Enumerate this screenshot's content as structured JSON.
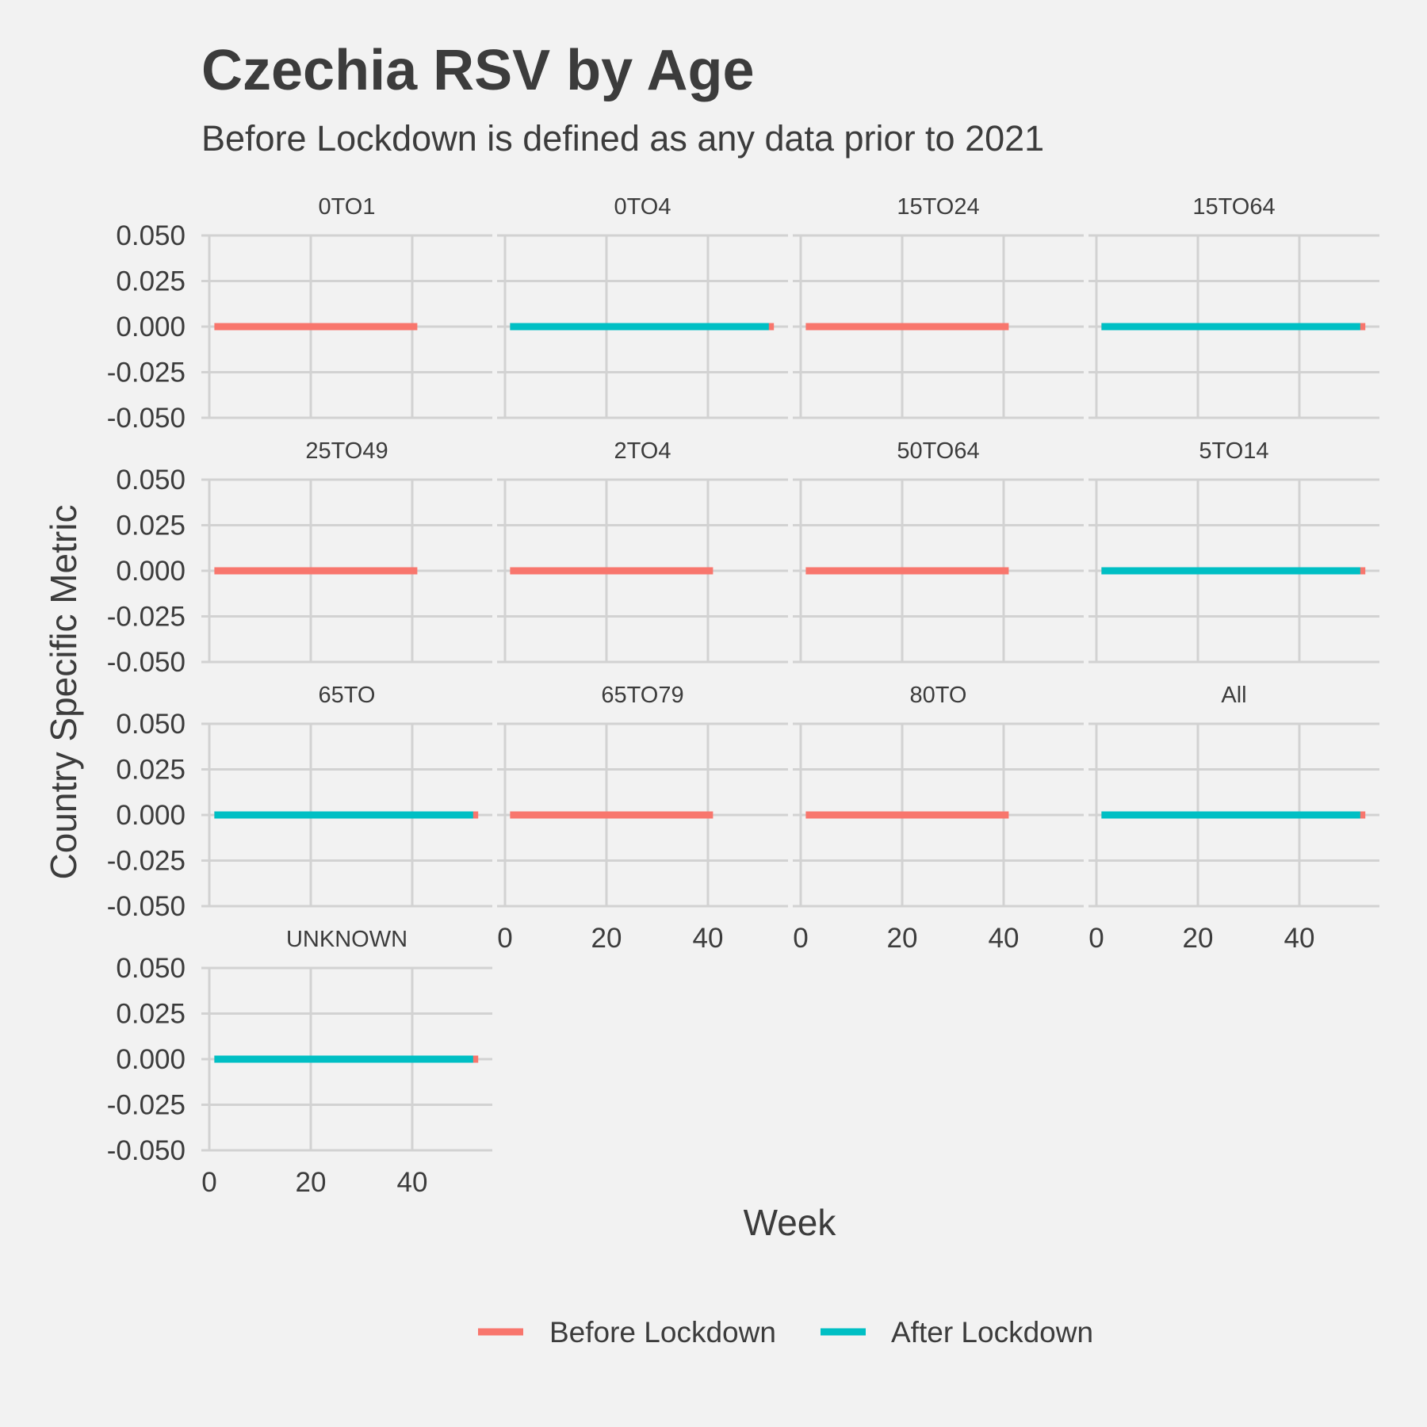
{
  "chart_data": {
    "type": "line",
    "title": "Czechia RSV by Age",
    "subtitle": "Before Lockdown is defined as any data prior to 2021",
    "xlabel": "Week",
    "ylabel": "Country Specific Metric",
    "xlim": [
      0,
      55
    ],
    "ylim": [
      -0.05,
      0.05
    ],
    "x_ticks": [
      0,
      20,
      40
    ],
    "y_ticks": [
      0.05,
      0.025,
      0,
      -0.025,
      -0.05
    ],
    "y_tick_labels": [
      "0.050",
      "0.025",
      "0.000",
      "-0.025",
      "-0.050"
    ],
    "legend_position": "bottom",
    "legend": [
      {
        "name": "Before Lockdown",
        "color": "#f8766d"
      },
      {
        "name": "After Lockdown",
        "color": "#00bfc4"
      }
    ],
    "panels": [
      {
        "label": "0TO1",
        "before": [
          1,
          41
        ],
        "after": null
      },
      {
        "label": "0TO4",
        "before": [
          1,
          53
        ],
        "after": [
          1,
          52
        ]
      },
      {
        "label": "15TO24",
        "before": [
          1,
          41
        ],
        "after": null
      },
      {
        "label": "15TO64",
        "before": [
          1,
          53
        ],
        "after": [
          1,
          52
        ]
      },
      {
        "label": "25TO49",
        "before": [
          1,
          41
        ],
        "after": null
      },
      {
        "label": "2TO4",
        "before": [
          1,
          41
        ],
        "after": null
      },
      {
        "label": "50TO64",
        "before": [
          1,
          41
        ],
        "after": null
      },
      {
        "label": "5TO14",
        "before": [
          1,
          53
        ],
        "after": [
          1,
          52
        ]
      },
      {
        "label": "65TO",
        "before": [
          1,
          53
        ],
        "after": [
          1,
          52
        ]
      },
      {
        "label": "65TO79",
        "before": [
          1,
          41
        ],
        "after": null
      },
      {
        "label": "80TO",
        "before": [
          1,
          41
        ],
        "after": null
      },
      {
        "label": "All",
        "before": [
          1,
          53
        ],
        "after": [
          1,
          52
        ]
      },
      {
        "label": "UNKNOWN",
        "before": [
          1,
          53
        ],
        "after": [
          1,
          52
        ]
      }
    ],
    "value": 0
  }
}
